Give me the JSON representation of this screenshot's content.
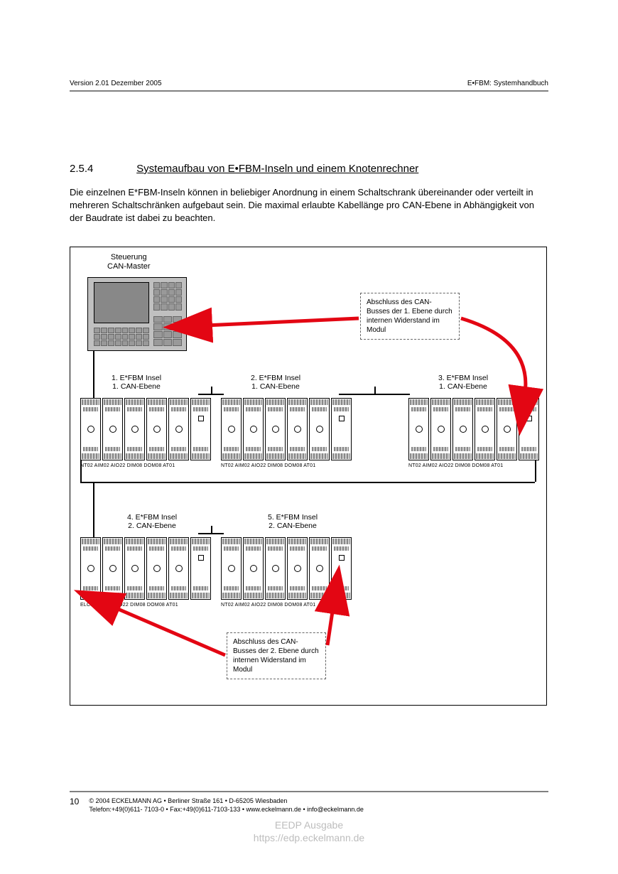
{
  "header": {
    "left": "Version 2.01   Dezember 2005",
    "right": "E•FBM: Systemhandbuch"
  },
  "section": {
    "number": "2.5.4",
    "title": "Systemaufbau von E•FBM-Inseln und einem Knotenrechner"
  },
  "body": "Die einzelnen E*FBM-Inseln können in beliebiger Anordnung in einem Schaltschrank übereinander oder verteilt in mehreren Schaltschränken aufgebaut sein. Die maximal erlaubte Kabellänge pro CAN-Ebene in Abhängigkeit von der Baudrate ist dabei zu beachten.",
  "diagram": {
    "can_master_label": "Steuerung\nCAN-Master",
    "callout1": "Abschluss des CAN-Busses der 1. Ebene durch internen Widerstand im Modul",
    "callout2": "Abschluss des CAN-Busses der 2. Ebene durch internen Widerstand im Modul",
    "islands": [
      {
        "label": "1. E*FBM Insel\n1. CAN-Ebene",
        "modules": "NT02  AIM02  AIO22  DIM08  DOM08 AT01"
      },
      {
        "label": "2. E*FBM Insel\n1. CAN-Ebene",
        "modules": "NT02  AIM02  AIO22  DIM08  DOM08 AT01"
      },
      {
        "label": "3. E*FBM Insel\n1. CAN-Ebene",
        "modules": "NT02  AIM02  AIO22  DIM08  DOM08 AT01"
      },
      {
        "label": "4. E*FBM Insel\n2. CAN-Ebene",
        "modules": "ELC51    AIM02  AIO22  DIM08  DOM08 AT01"
      },
      {
        "label": "5. E*FBM Insel\n2. CAN-Ebene",
        "modules": "NT02  AIM02  AIO22  DIM08  DOM08 AT01"
      }
    ],
    "arrow_color": "#e30613",
    "line_color": "#000000",
    "border_color": "#000000"
  },
  "footer": {
    "page": "10",
    "line1": "©  2004 ECKELMANN AG • Berliner Straße 161 • D-65205 Wiesbaden",
    "line2": "Telefon:+49(0)611- 7103-0 • Fax:+49(0)611-7103-133 • www.eckelmann.de • info@eckelmann.de"
  },
  "watermark": {
    "line1": "EEDP Ausgabe",
    "line2": "https://edp.eckelmann.de"
  }
}
